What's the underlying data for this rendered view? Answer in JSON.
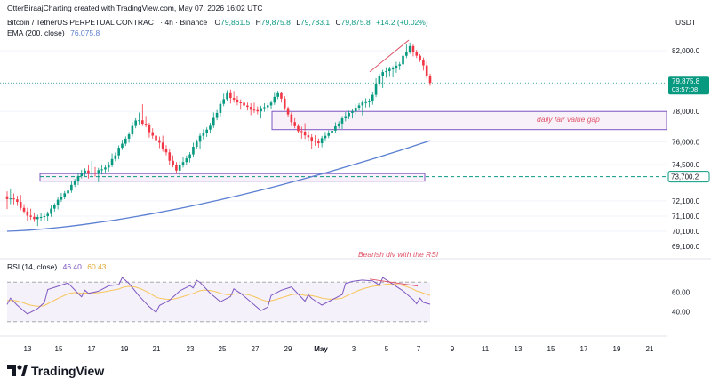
{
  "header": {
    "caption": "OtterBiraajCharting created with TradingView.com, May 07, 2026 16:02 UTC",
    "currency": "USDT",
    "symbol_line": "Bitcoin / TetherUS PERPETUAL CONTRACT · 4h · Binance",
    "ohlc": {
      "o_label": "O",
      "o": "79,861.5",
      "h_label": "H",
      "h": "79,875.8",
      "l_label": "L",
      "l": "79,783.1",
      "c_label": "C",
      "c": "79,875.8",
      "change": "+14.2 (+0.02%)"
    },
    "ema_label": "EMA (200, close)",
    "ema_value": "76,075.8"
  },
  "price_axis": {
    "ticks": [
      "82,000.0",
      "78,000.0",
      "76,000.0",
      "74,500.0",
      "73,700.0",
      "72,100.0",
      "71,100.0",
      "70,100.0",
      "69,100.0"
    ],
    "last_price": "79,875.8",
    "countdown": "03:57:08",
    "level_label": "73,700.2"
  },
  "rsi_panel": {
    "label": "RSI (14, close)",
    "rsi_value": "46.40",
    "ma_value": "60.43",
    "ticks": [
      "60.00",
      "40.00"
    ]
  },
  "time_axis": {
    "labels": [
      "13",
      "15",
      "17",
      "19",
      "21",
      "23",
      "25",
      "27",
      "29",
      "May",
      "3",
      "5",
      "7",
      "9",
      "11",
      "13",
      "15",
      "17",
      "19",
      "21"
    ]
  },
  "annotations": {
    "fvg": "daily fair value gap",
    "divergence": "Bearish div with the RSI"
  },
  "brand": {
    "name": "TradingView"
  },
  "colors": {
    "up": "#089981",
    "down": "#f23645",
    "ema": "#5b7fd1",
    "box_fill": "#f3e5f5",
    "box_stroke": "#7e57c2",
    "rsi_line": "#7e57c2",
    "rsi_ma": "#f7c55a",
    "annotation": "#e0566b",
    "price_tag": "#089981"
  },
  "chart_data": {
    "type": "candlestick",
    "title": "Bitcoin / TetherUS PERPETUAL CONTRACT · 4h · Binance",
    "candles_ohlc_anchor": [
      [
        72400,
        73000,
        71600,
        72200
      ],
      [
        72200,
        72600,
        71200,
        71400
      ],
      [
        71400,
        71800,
        70600,
        70900
      ],
      [
        70900,
        71300,
        70500,
        71100
      ],
      [
        71100,
        72000,
        70800,
        71800
      ],
      [
        71800,
        72800,
        71600,
        72600
      ],
      [
        72600,
        73600,
        72400,
        73400
      ],
      [
        73400,
        74300,
        73200,
        74100
      ],
      [
        74100,
        74800,
        73600,
        73900
      ],
      [
        73900,
        74500,
        73400,
        74300
      ],
      [
        74300,
        75400,
        74100,
        75100
      ],
      [
        75100,
        76400,
        74900,
        76200
      ],
      [
        76200,
        77600,
        76000,
        77400
      ],
      [
        77400,
        78400,
        76900,
        77100
      ],
      [
        77100,
        77300,
        75800,
        76100
      ],
      [
        76100,
        76500,
        75000,
        75300
      ],
      [
        75300,
        75600,
        73900,
        74100
      ],
      [
        74100,
        75200,
        73800,
        74900
      ],
      [
        74900,
        76200,
        74700,
        76000
      ],
      [
        76000,
        77000,
        75600,
        76800
      ],
      [
        76800,
        78200,
        76600,
        77900
      ],
      [
        77900,
        79500,
        77700,
        79200
      ],
      [
        79200,
        79600,
        78300,
        78600
      ],
      [
        78600,
        78900,
        77900,
        78300
      ],
      [
        78300,
        78700,
        77700,
        78000
      ],
      [
        78000,
        78600,
        77600,
        78400
      ],
      [
        78400,
        79400,
        78200,
        79200
      ],
      [
        79200,
        79300,
        77600,
        77800
      ],
      [
        77800,
        78000,
        76500,
        76700
      ],
      [
        76700,
        77200,
        75900,
        76300
      ],
      [
        76300,
        76600,
        75400,
        75900
      ],
      [
        75900,
        76800,
        75700,
        76600
      ],
      [
        76600,
        77400,
        76400,
        77200
      ],
      [
        77200,
        78100,
        76900,
        77900
      ],
      [
        77900,
        78600,
        77600,
        78400
      ],
      [
        78400,
        78900,
        77800,
        78700
      ],
      [
        78700,
        80600,
        78500,
        80300
      ],
      [
        80300,
        81000,
        79600,
        80800
      ],
      [
        80800,
        81300,
        80300,
        81100
      ],
      [
        81100,
        82700,
        80900,
        82300
      ],
      [
        82300,
        82400,
        81200,
        81400
      ],
      [
        81400,
        81600,
        79600,
        79876
      ]
    ],
    "ema200": {
      "name": "EMA (200, close)",
      "start": 70100,
      "end": 76076
    },
    "fair_value_gap": {
      "label": "daily fair value gap",
      "low": 76800,
      "high": 78000
    },
    "support_zone": {
      "low": 73400,
      "high": 73900
    },
    "rsi14": [
      52,
      44,
      38,
      46,
      58,
      64,
      70,
      62,
      55,
      60,
      68,
      72,
      66,
      56,
      48,
      42,
      50,
      62,
      70,
      66,
      58,
      52,
      60,
      56,
      50,
      44,
      52,
      60,
      66,
      58,
      50,
      46,
      54,
      62,
      68,
      72,
      74,
      70,
      66,
      62,
      56,
      46
    ],
    "rsi_levels": [
      70,
      50,
      30
    ]
  }
}
